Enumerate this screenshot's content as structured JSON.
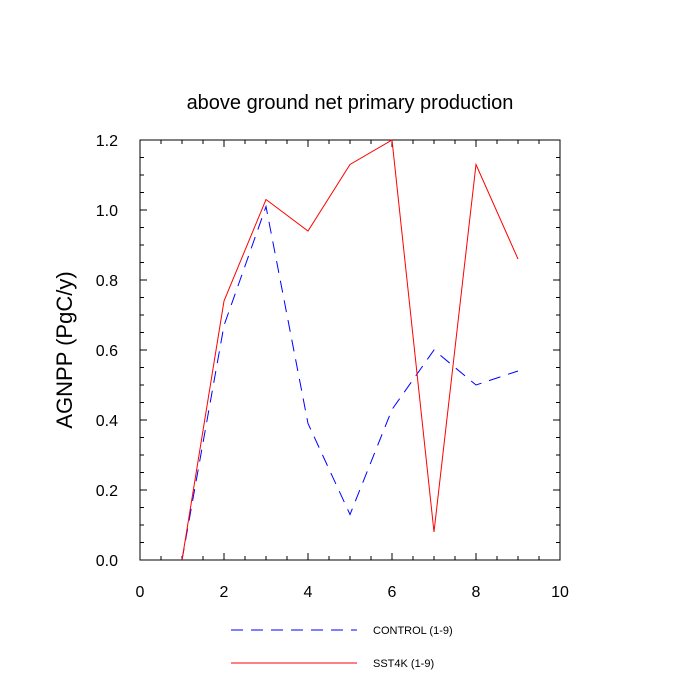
{
  "chart_data": {
    "type": "line",
    "title": "above ground net primary production",
    "xlabel": "",
    "ylabel": "AGNPP  (PgC/y)",
    "xlim": [
      0,
      10
    ],
    "ylim": [
      0,
      1.2
    ],
    "xticks": [
      0,
      2,
      4,
      6,
      8,
      10
    ],
    "xtick_labels": [
      "0",
      "2",
      "4",
      "6",
      "8",
      "10"
    ],
    "yticks": [
      0,
      0.2,
      0.4,
      0.6,
      0.8,
      1.0,
      1.2
    ],
    "ytick_labels": [
      "0.0",
      "0.2",
      "0.4",
      "0.6",
      "0.8",
      "1.0",
      "1.2"
    ],
    "x": [
      1,
      2,
      3,
      4,
      5,
      6,
      7,
      8,
      9
    ],
    "series": [
      {
        "name": "CONTROL (1-9)",
        "color": "#0000ff",
        "dash": "dashed",
        "values": [
          0.0,
          0.67,
          1.01,
          0.39,
          0.13,
          0.43,
          0.6,
          0.5,
          0.54
        ]
      },
      {
        "name": "SST4K (1-9)",
        "color": "#ff0000",
        "dash": "solid",
        "values": [
          0.0,
          0.74,
          1.03,
          0.94,
          1.13,
          1.2,
          0.08,
          1.13,
          0.86
        ]
      }
    ],
    "grid": false,
    "legend_position": "bottom"
  }
}
